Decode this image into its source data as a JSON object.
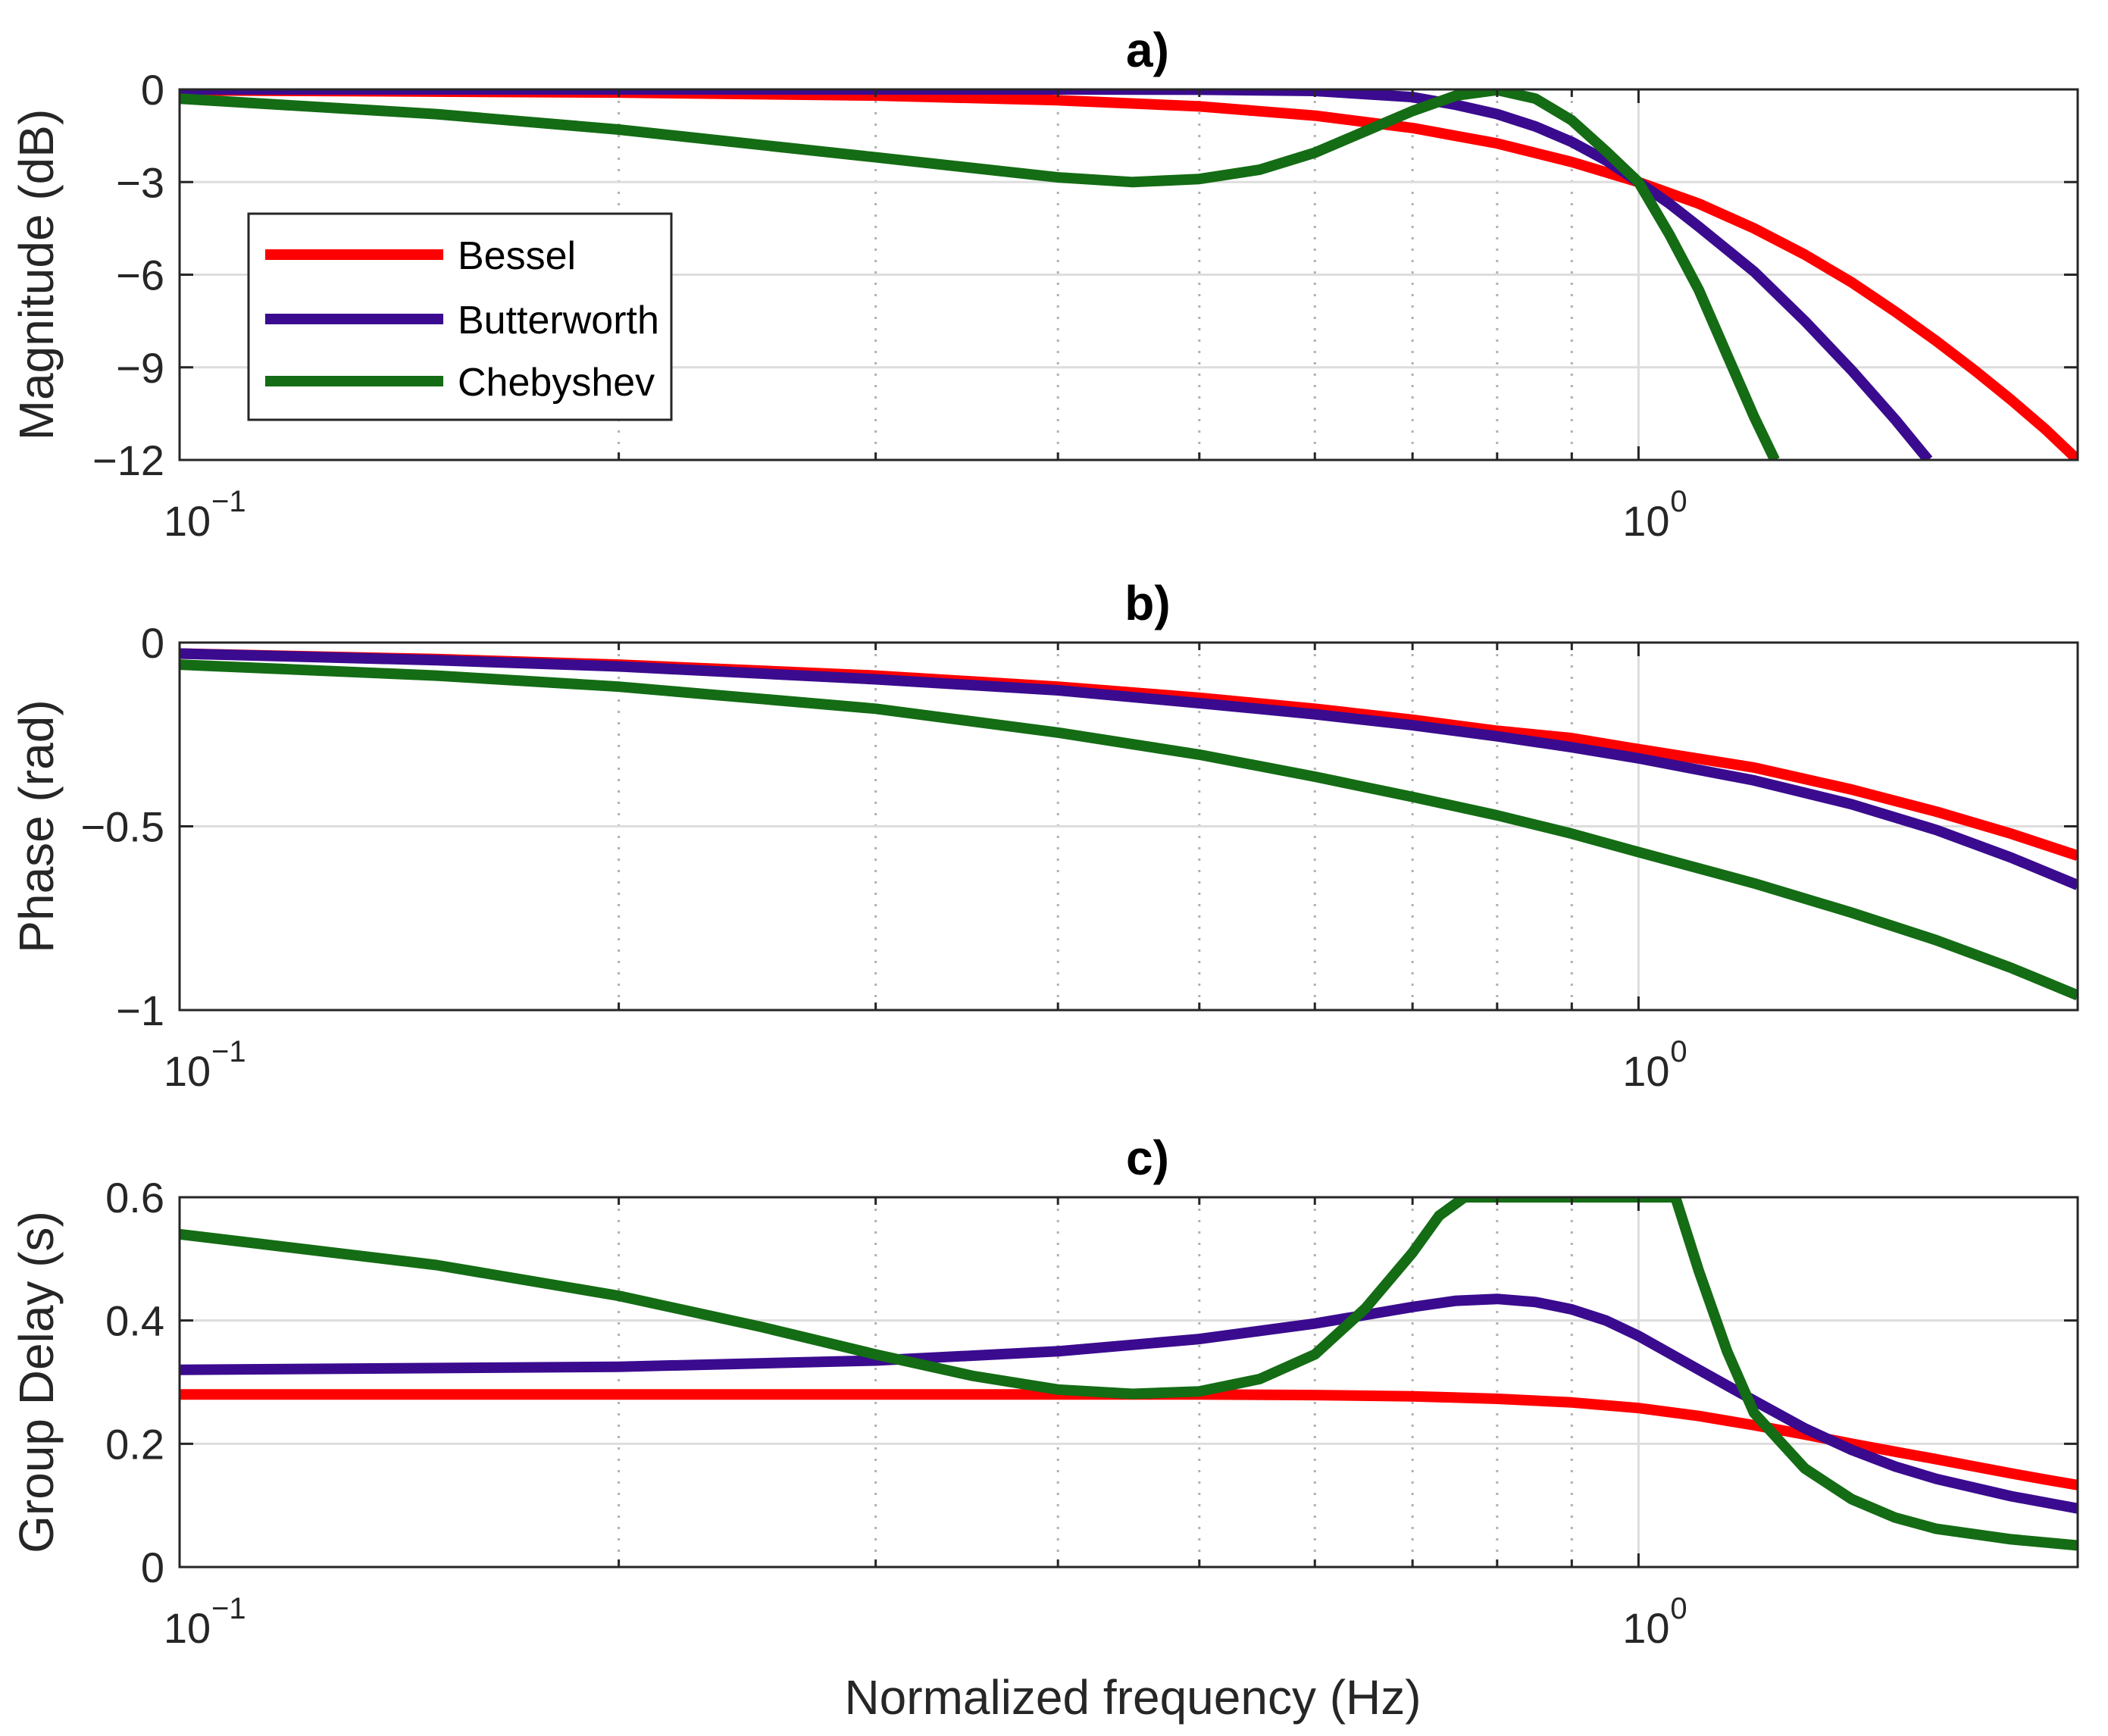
{
  "figure": {
    "xlabel": "Normalized frequency (Hz)"
  },
  "colors": {
    "Bessel": "#ff0000",
    "Butterworth": "#3a0b8f",
    "Chebyshev": "#146c14",
    "grid": "#dddddd",
    "minorgrid": "#b0b0b0",
    "axis": "#262626"
  },
  "legend": {
    "items": [
      "Bessel",
      "Butterworth",
      "Chebyshev"
    ],
    "location": "inside-left, upper panel"
  },
  "chart_data": [
    {
      "type": "line",
      "title": "a)",
      "ylabel": "Magnitude (dB)",
      "xscale": "log",
      "xlim": [
        0.1,
        2.0
      ],
      "ylim": [
        -12,
        0
      ],
      "yticks": [
        0,
        -3,
        -6,
        -9,
        -12
      ],
      "ytick_labels": [
        "0",
        "−3",
        "−6",
        "−9",
        "−12"
      ],
      "xtick_labels": [
        "10",
        "10"
      ],
      "xtick_exponents": [
        "−1",
        "0"
      ],
      "grid": true,
      "series": [
        {
          "name": "Bessel",
          "x": [
            0.1,
            0.2,
            0.3,
            0.4,
            0.5,
            0.6,
            0.7,
            0.8,
            0.9,
            1.0,
            1.1,
            1.2,
            1.3,
            1.4,
            1.5,
            1.6,
            1.7,
            1.8,
            1.9,
            2.0
          ],
          "y": [
            -0.03,
            -0.1,
            -0.2,
            -0.35,
            -0.55,
            -0.85,
            -1.25,
            -1.75,
            -2.35,
            -3.0,
            -3.7,
            -4.5,
            -5.35,
            -6.25,
            -7.2,
            -8.15,
            -9.1,
            -10.05,
            -11.0,
            -12.0
          ]
        },
        {
          "name": "Butterworth",
          "x": [
            0.1,
            0.2,
            0.3,
            0.4,
            0.5,
            0.6,
            0.7,
            0.75,
            0.8,
            0.85,
            0.9,
            0.95,
            1.0,
            1.05,
            1.1,
            1.2,
            1.3,
            1.4,
            1.5,
            1.58
          ],
          "y": [
            0.0,
            0.0,
            0.0,
            0.0,
            -0.01,
            -0.05,
            -0.25,
            -0.5,
            -0.8,
            -1.2,
            -1.7,
            -2.3,
            -3.0,
            -3.7,
            -4.45,
            -5.9,
            -7.5,
            -9.1,
            -10.7,
            -12.0
          ]
        },
        {
          "name": "Chebyshev",
          "x": [
            0.1,
            0.15,
            0.2,
            0.3,
            0.4,
            0.45,
            0.5,
            0.55,
            0.6,
            0.65,
            0.7,
            0.75,
            0.8,
            0.85,
            0.9,
            0.95,
            1.0,
            1.05,
            1.1,
            1.15,
            1.2,
            1.24
          ],
          "y": [
            -0.3,
            -0.8,
            -1.3,
            -2.2,
            -2.85,
            -3.0,
            -2.9,
            -2.6,
            -2.05,
            -1.35,
            -0.7,
            -0.2,
            -0.02,
            -0.3,
            -1.0,
            -2.0,
            -3.0,
            -4.7,
            -6.5,
            -8.6,
            -10.6,
            -12.0
          ]
        }
      ]
    },
    {
      "type": "line",
      "title": "b)",
      "ylabel": "Phase (rad)",
      "xscale": "log",
      "xlim": [
        0.1,
        2.0
      ],
      "ylim": [
        -1,
        0
      ],
      "yticks": [
        0,
        -0.5,
        -1
      ],
      "ytick_labels": [
        "0",
        "−0.5",
        "−1"
      ],
      "xtick_labels": [
        "10",
        "10"
      ],
      "xtick_exponents": [
        "−1",
        "0"
      ],
      "grid": true,
      "series": [
        {
          "name": "Bessel",
          "x": [
            0.1,
            0.15,
            0.2,
            0.3,
            0.4,
            0.5,
            0.6,
            0.7,
            0.8,
            0.9,
            1.0,
            1.2,
            1.4,
            1.6,
            1.8,
            2.0
          ],
          "y": [
            -0.03,
            -0.045,
            -0.06,
            -0.09,
            -0.12,
            -0.15,
            -0.18,
            -0.21,
            -0.24,
            -0.26,
            -0.29,
            -0.34,
            -0.4,
            -0.46,
            -0.52,
            -0.58
          ]
        },
        {
          "name": "Butterworth",
          "x": [
            0.1,
            0.15,
            0.2,
            0.3,
            0.4,
            0.5,
            0.6,
            0.7,
            0.8,
            0.9,
            1.0,
            1.2,
            1.4,
            1.6,
            1.8,
            2.0
          ],
          "y": [
            -0.03,
            -0.048,
            -0.065,
            -0.1,
            -0.13,
            -0.165,
            -0.195,
            -0.225,
            -0.255,
            -0.285,
            -0.315,
            -0.375,
            -0.44,
            -0.51,
            -0.585,
            -0.66
          ]
        },
        {
          "name": "Chebyshev",
          "x": [
            0.1,
            0.15,
            0.2,
            0.3,
            0.4,
            0.5,
            0.6,
            0.7,
            0.8,
            0.9,
            1.0,
            1.2,
            1.4,
            1.6,
            1.8,
            2.0
          ],
          "y": [
            -0.06,
            -0.09,
            -0.12,
            -0.18,
            -0.245,
            -0.305,
            -0.365,
            -0.42,
            -0.47,
            -0.52,
            -0.57,
            -0.655,
            -0.735,
            -0.81,
            -0.885,
            -0.96
          ]
        }
      ]
    },
    {
      "type": "line",
      "title": "c)",
      "ylabel": "Group Delay (s)",
      "xscale": "log",
      "xlim": [
        0.1,
        2.0
      ],
      "ylim": [
        0,
        0.6
      ],
      "yticks": [
        0,
        0.2,
        0.4,
        0.6
      ],
      "ytick_labels": [
        "0",
        "0.2",
        "0.4",
        "0.6"
      ],
      "xtick_labels": [
        "10",
        "10"
      ],
      "xtick_exponents": [
        "−1",
        "0"
      ],
      "grid": true,
      "series": [
        {
          "name": "Bessel",
          "x": [
            0.1,
            0.2,
            0.3,
            0.4,
            0.5,
            0.6,
            0.7,
            0.8,
            0.9,
            1.0,
            1.1,
            1.2,
            1.3,
            1.4,
            1.5,
            1.6,
            1.7,
            1.8,
            1.9,
            2.0
          ],
          "y": [
            0.28,
            0.28,
            0.28,
            0.28,
            0.28,
            0.279,
            0.277,
            0.273,
            0.267,
            0.258,
            0.245,
            0.23,
            0.215,
            0.2,
            0.187,
            0.175,
            0.163,
            0.152,
            0.142,
            0.133
          ]
        },
        {
          "name": "Butterworth",
          "x": [
            0.1,
            0.2,
            0.3,
            0.4,
            0.5,
            0.6,
            0.7,
            0.75,
            0.8,
            0.85,
            0.9,
            0.95,
            1.0,
            1.1,
            1.2,
            1.3,
            1.4,
            1.5,
            1.6,
            1.8,
            2.0
          ],
          "y": [
            0.32,
            0.325,
            0.335,
            0.35,
            0.37,
            0.395,
            0.422,
            0.432,
            0.435,
            0.43,
            0.418,
            0.4,
            0.375,
            0.32,
            0.27,
            0.225,
            0.19,
            0.163,
            0.143,
            0.115,
            0.095
          ]
        },
        {
          "name": "Chebyshev",
          "x": [
            0.1,
            0.15,
            0.2,
            0.25,
            0.3,
            0.35,
            0.4,
            0.45,
            0.5,
            0.55,
            0.6,
            0.65,
            0.7,
            0.73,
            0.76,
            1.06,
            1.1,
            1.15,
            1.2,
            1.3,
            1.4,
            1.5,
            1.6,
            1.8,
            2.0
          ],
          "y": [
            0.54,
            0.49,
            0.44,
            0.39,
            0.345,
            0.31,
            0.288,
            0.281,
            0.285,
            0.305,
            0.345,
            0.42,
            0.51,
            0.57,
            0.6,
            0.6,
            0.48,
            0.35,
            0.25,
            0.16,
            0.11,
            0.08,
            0.062,
            0.045,
            0.035
          ]
        }
      ]
    }
  ]
}
